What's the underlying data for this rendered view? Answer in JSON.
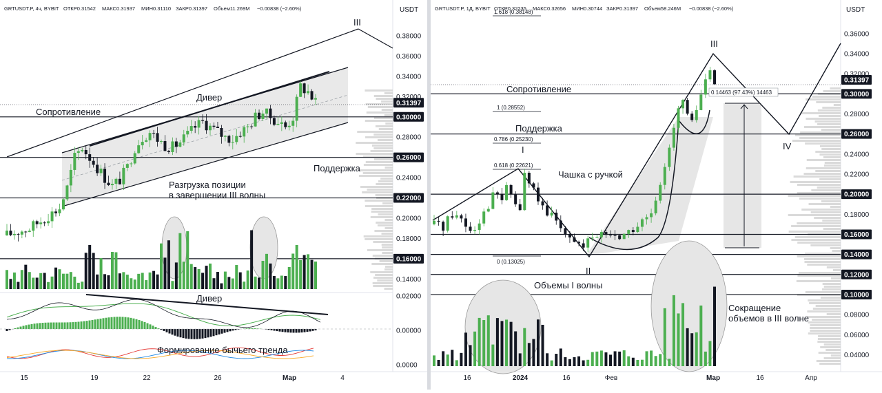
{
  "left": {
    "header": {
      "symbol": "GRTUSDT.P, 4ч, BYBIT",
      "open": "ОТКР0.31542",
      "high": "МАКС0.31937",
      "low": "МИН0.31110",
      "close": "ЗАКР0.31397",
      "volume": "Объем11.269M",
      "change": "−0.00838 (−2.60%)"
    },
    "currency": "USDT",
    "price_ticks": [
      "0.38000",
      "0.36000",
      "0.34000",
      "0.32000",
      "0.30000",
      "0.28000",
      "0.26000",
      "0.24000",
      "0.22000",
      "0.20000",
      "0.18000",
      "0.16000",
      "0.14000"
    ],
    "price_label_last": "0.31397",
    "highlighted_levels": [
      "0.30000",
      "0.26000",
      "0.22000",
      "0.16000"
    ],
    "osc_ticks": [
      "0.02000",
      "0.00000",
      "0.0000"
    ],
    "x_ticks": [
      "15",
      "19",
      "22",
      "26",
      "Мар",
      "4"
    ],
    "annotations": {
      "wave3": "III",
      "resistance": "Сопротивление",
      "divergence": "Дивер",
      "support": "Поддержка",
      "unload_line1": "Разгрузка позиции",
      "unload_line2": "в завершении III волны",
      "divergence_osc": "Дивер",
      "bull_trend": "Формирование бычьего тренда"
    },
    "colors": {
      "up": "#4caf50",
      "down": "#131722"
    }
  },
  "right": {
    "header": {
      "symbol": "GRTUSDT.P, 1Д, BYBIT",
      "open": "ОТКР0.32235",
      "high": "МАКС0.32656",
      "low": "МИН0.30744",
      "close": "ЗАКР0.31397",
      "volume": "Объем58.246M",
      "change": "−0.00838 (−2.60%)"
    },
    "currency": "USDT",
    "price_ticks": [
      "0.36000",
      "0.34000",
      "0.32000",
      "0.30000",
      "0.28000",
      "0.26000",
      "0.24000",
      "0.22000",
      "0.20000",
      "0.18000",
      "0.16000",
      "0.14000",
      "0.12000",
      "0.10000",
      "0.08000",
      "0.06000",
      "0.04000"
    ],
    "price_label_last": "0.31397",
    "highlighted_levels": [
      "0.30000",
      "0.26000",
      "0.20000",
      "0.16000",
      "0.14000",
      "0.12000",
      "0.10000"
    ],
    "x_ticks": [
      "16",
      "2024",
      "16",
      "Фев",
      "Мар",
      "16",
      "Апр"
    ],
    "fib_labels": [
      "1.618 (0.38148)",
      "1 (0.28552)",
      "0.786 (0.25230)",
      "0.618 (0.22621)",
      "0 (0.13025)"
    ],
    "measure_label": "0.14463 (97.43%) 14463",
    "annotations": {
      "wave1": "I",
      "wave2": "II",
      "wave3": "III",
      "wave4": "IV",
      "resistance": "Сопротивление",
      "support": "Поддержка",
      "cup": "Чашка с ручкой",
      "vol_wave1": "Объемы I волны",
      "vol_cut_line1": "Сокращение",
      "vol_cut_line2": "объемов в III волне"
    },
    "colors": {
      "up": "#4caf50",
      "down": "#131722"
    }
  },
  "chart_data": [
    {
      "type": "candlestick",
      "symbol": "GRTUSDT.P",
      "timeframe": "4ч",
      "ylim": [
        0.13,
        0.395
      ],
      "x_ticks": [
        "15",
        "19",
        "22",
        "26",
        "Мар",
        "4"
      ],
      "last_price": 0.31397,
      "horizontal_levels": [
        0.3,
        0.26,
        0.22,
        0.16
      ],
      "close_path": [
        0.183,
        0.186,
        0.188,
        0.19,
        0.195,
        0.2,
        0.205,
        0.21,
        0.23,
        0.26,
        0.27,
        0.26,
        0.25,
        0.24,
        0.232,
        0.238,
        0.25,
        0.27,
        0.28,
        0.285,
        0.278,
        0.272,
        0.27,
        0.275,
        0.282,
        0.29,
        0.295,
        0.29,
        0.285,
        0.28,
        0.278,
        0.285,
        0.29,
        0.3,
        0.305,
        0.3,
        0.295,
        0.29,
        0.3,
        0.33,
        0.325,
        0.314
      ]
    },
    {
      "type": "candlestick",
      "symbol": "GRTUSDT.P",
      "timeframe": "1Д",
      "ylim": [
        0.03,
        0.375
      ],
      "x_ticks": [
        "16",
        "2024",
        "16",
        "Фев",
        "Мар",
        "16",
        "Апр"
      ],
      "last_price": 0.31397,
      "horizontal_levels": [
        0.3,
        0.26,
        0.2,
        0.16,
        0.14,
        0.12,
        0.1
      ],
      "fibonacci": [
        {
          "level": 1.618,
          "price": 0.38148
        },
        {
          "level": 1,
          "price": 0.28552
        },
        {
          "level": 0.786,
          "price": 0.2523
        },
        {
          "level": 0.618,
          "price": 0.22621
        },
        {
          "level": 0,
          "price": 0.13025
        }
      ],
      "measure": {
        "value": 0.14463,
        "percent": 97.43
      },
      "close_path": [
        0.17,
        0.172,
        0.168,
        0.175,
        0.18,
        0.178,
        0.176,
        0.17,
        0.165,
        0.168,
        0.175,
        0.182,
        0.19,
        0.198,
        0.2,
        0.195,
        0.205,
        0.2,
        0.19,
        0.185,
        0.22,
        0.21,
        0.205,
        0.195,
        0.185,
        0.175,
        0.18,
        0.172,
        0.168,
        0.165,
        0.16,
        0.155,
        0.15,
        0.145,
        0.152,
        0.155,
        0.158,
        0.162,
        0.16,
        0.158,
        0.16,
        0.158,
        0.16,
        0.162,
        0.165,
        0.168,
        0.172,
        0.175,
        0.18,
        0.19,
        0.205,
        0.23,
        0.25,
        0.27,
        0.285,
        0.29,
        0.28,
        0.27,
        0.285,
        0.3,
        0.315,
        0.32,
        0.314
      ]
    }
  ]
}
